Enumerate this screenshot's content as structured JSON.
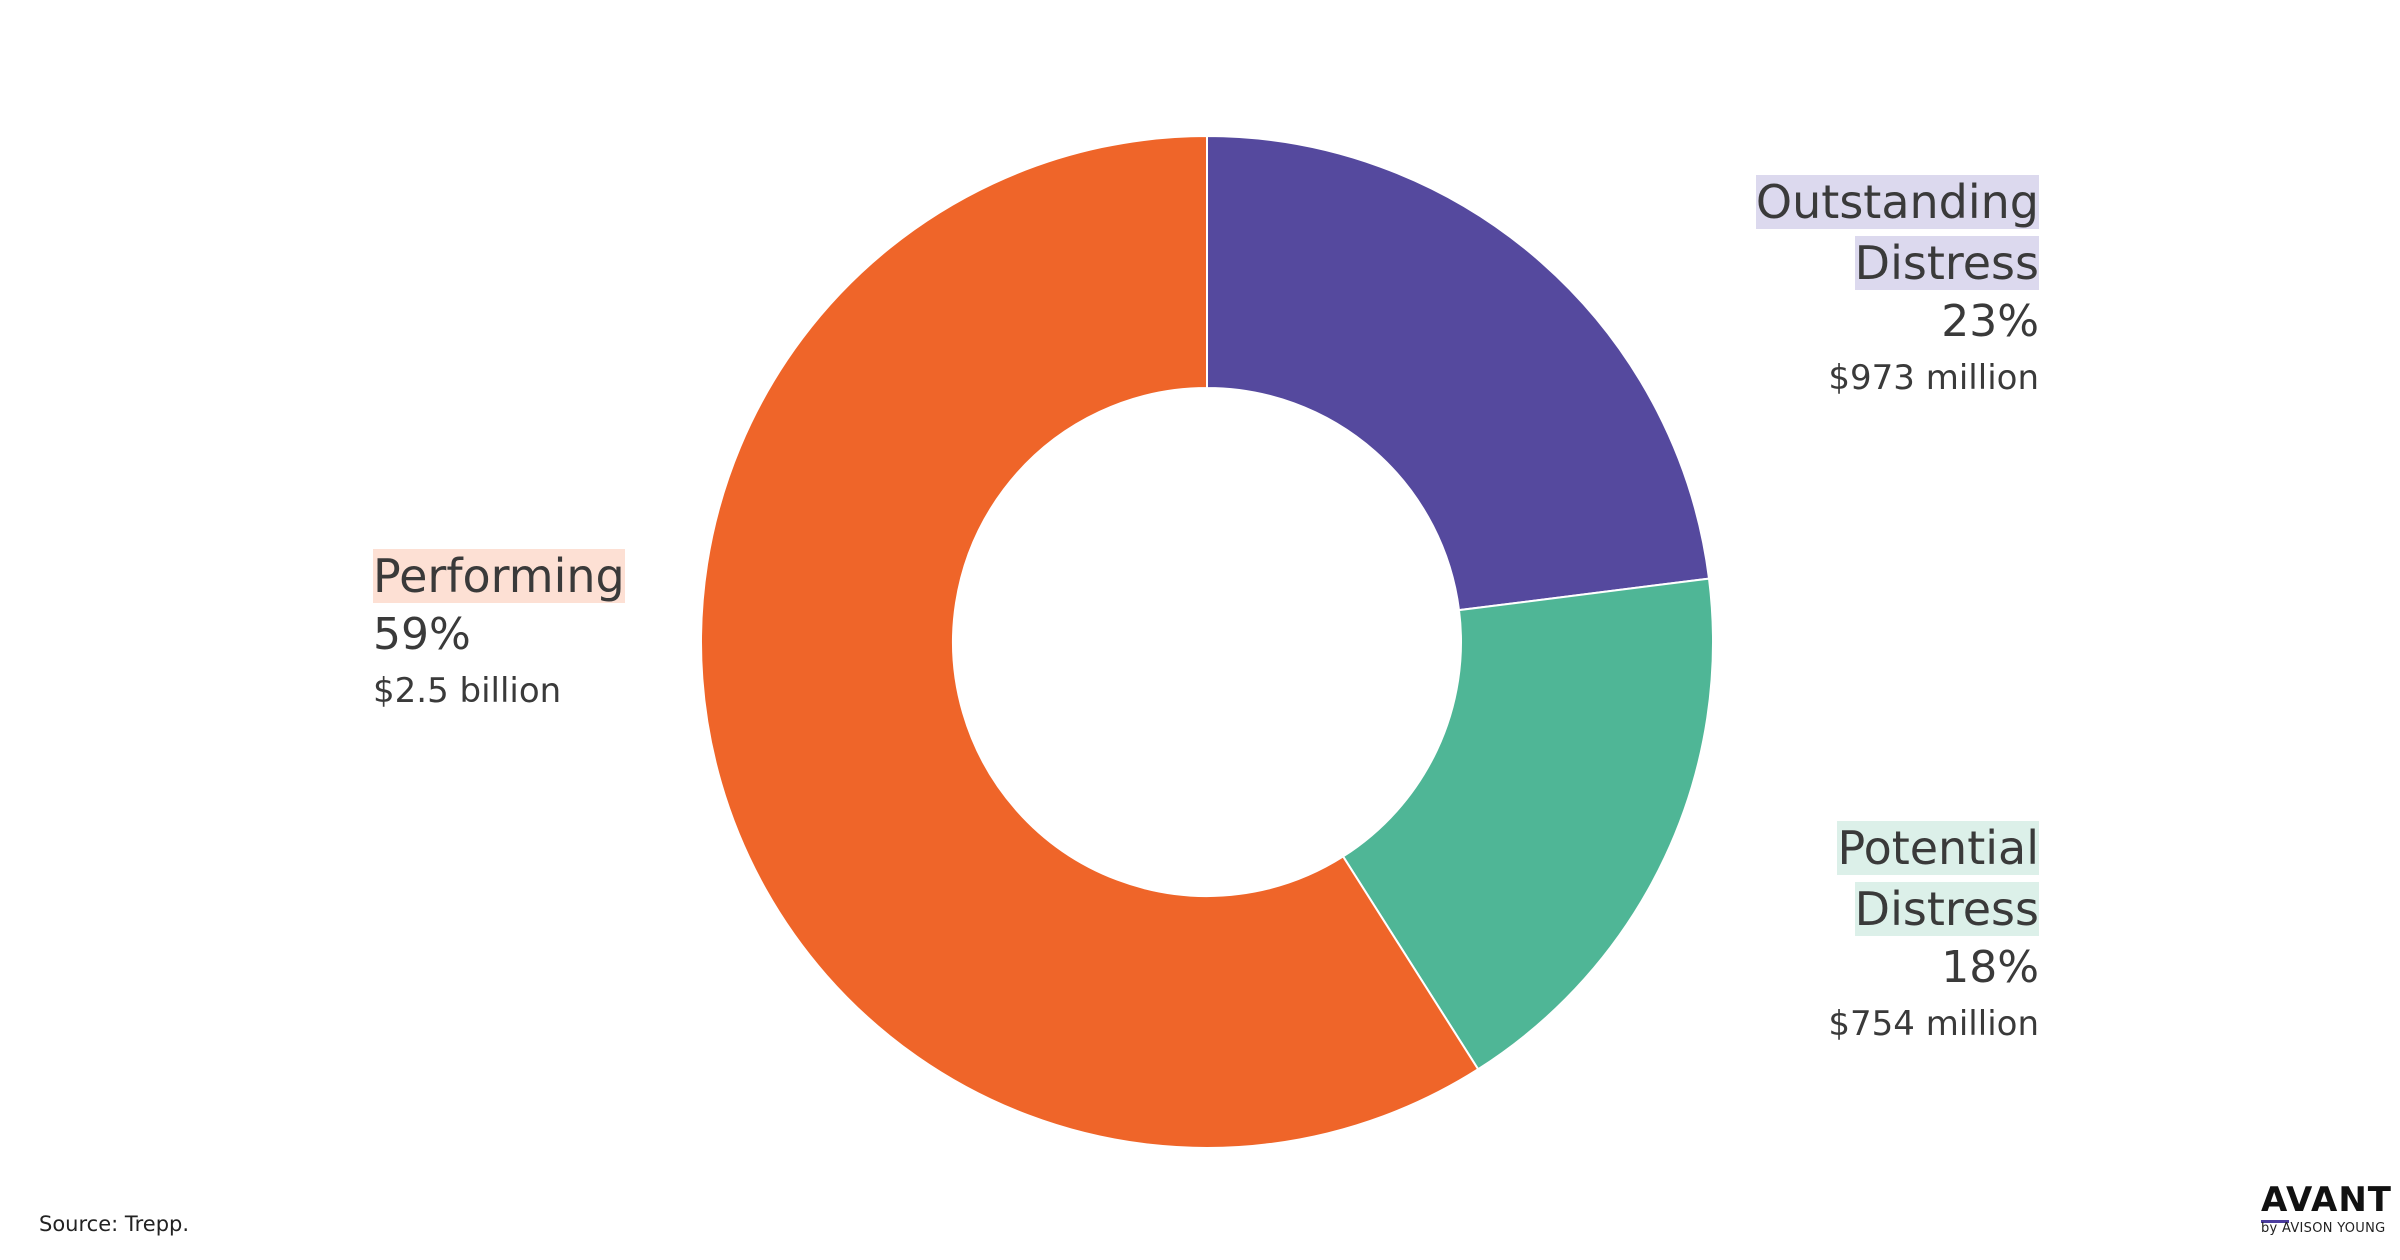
{
  "chart_data": {
    "type": "pie",
    "variant": "donut",
    "title": "",
    "slices": [
      {
        "key": "outstanding",
        "name_lines": [
          "Outstanding",
          "Distress"
        ],
        "percent": 23,
        "percent_label": "23%",
        "amount_label": "$973 million",
        "color": "#55499e",
        "label_bg": "#dcd9ee"
      },
      {
        "key": "potential",
        "name_lines": [
          "Potential",
          "Distress"
        ],
        "percent": 18,
        "percent_label": "18%",
        "amount_label": "$754 million",
        "color": "#4fb696",
        "label_bg": "#dcf0e9"
      },
      {
        "key": "performing",
        "name_lines": [
          "Performing"
        ],
        "percent": 59,
        "percent_label": "59%",
        "amount_label": "$2.5 billion",
        "color": "#ef6529",
        "label_bg": "#fde0d4"
      }
    ],
    "start_angle_deg": 0,
    "direction": "clockwise",
    "legend": "none"
  },
  "footer": {
    "source": "Source: Trepp."
  },
  "brand": {
    "main": "AVANT",
    "sub": "by AVISON YOUNG",
    "accent_color": "#4b3c9e"
  }
}
